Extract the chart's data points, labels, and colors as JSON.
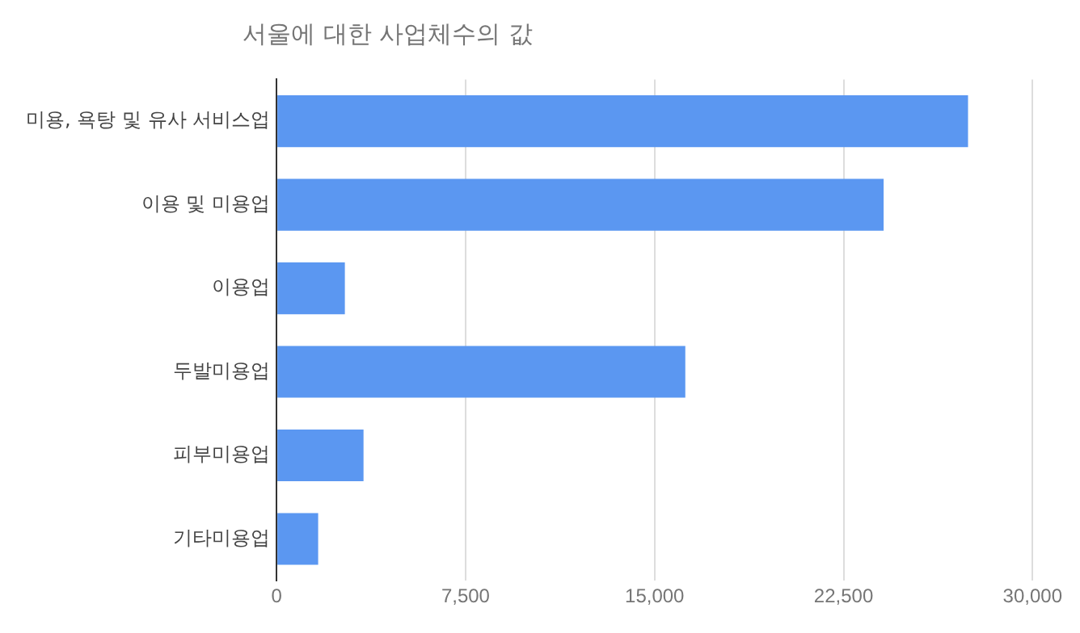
{
  "chart_data": {
    "type": "bar",
    "orientation": "horizontal",
    "title": "서울에 대한 사업체수의 값",
    "categories": [
      "미용, 욕탕 및 유사 서비스업",
      "이용 및 미용업",
      "이용업",
      "두발미용업",
      "피부미용업",
      "기타미용업"
    ],
    "values": [
      27440,
      24090,
      2710,
      16220,
      3450,
      1650
    ],
    "color": "#5b97f1",
    "xlim": [
      0,
      30000
    ],
    "xticks": [
      0,
      {
        "value": 7500,
        "label": "7,500"
      },
      {
        "value": 15000,
        "label": "15,000"
      },
      {
        "value": 22500,
        "label": "22,500"
      },
      {
        "value": 30000,
        "label": "30,000"
      }
    ],
    "grid": "x",
    "legend": false
  }
}
